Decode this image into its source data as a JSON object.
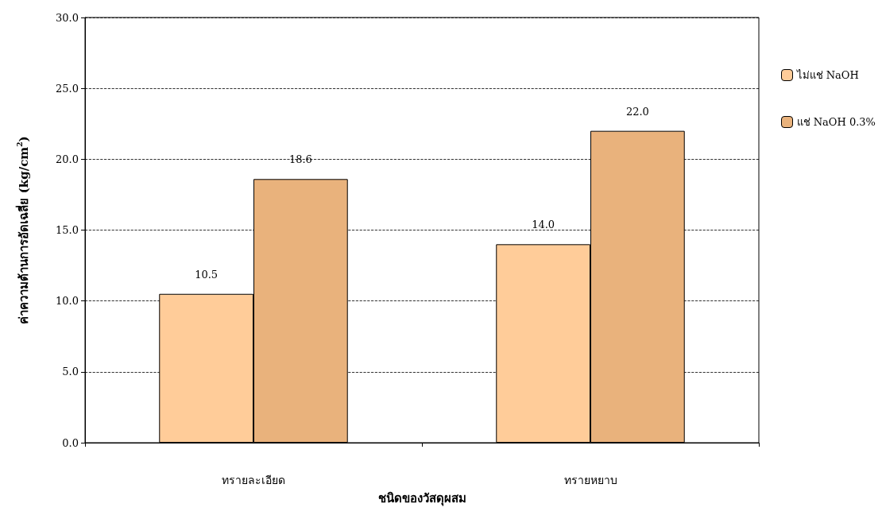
{
  "chart_data": {
    "type": "bar",
    "xlabel": "ชนิดของวัสดุผสม",
    "ylabel": "ค่าความต้านการอัดเฉลี่ย (kg/cm$^{2}$)",
    "categories": [
      "ทรายละเอียด",
      "ทรายหยาบ"
    ],
    "series": [
      {
        "name": "ไม่แช่ NaOH",
        "color": "#ffcc99",
        "values": [
          10.5,
          14.0
        ],
        "value_labels": [
          "10.5",
          "14.0"
        ]
      },
      {
        "name": "แช่ NaOH 0.3%",
        "color": "#e9b27c",
        "values": [
          18.6,
          22.0
        ],
        "value_labels": [
          "18.6",
          "22.0"
        ]
      }
    ],
    "ylim": [
      0,
      30
    ],
    "yticks": [
      {
        "value": 0,
        "label": "0.0"
      },
      {
        "value": 5,
        "label": "5.0"
      },
      {
        "value": 10,
        "label": "10.0"
      },
      {
        "value": 15,
        "label": "15.0"
      },
      {
        "value": 20,
        "label": "20.0"
      },
      {
        "value": 25,
        "label": "25.0"
      },
      {
        "value": 30,
        "label": "30.0"
      }
    ],
    "grid": "y",
    "legend": "right"
  }
}
